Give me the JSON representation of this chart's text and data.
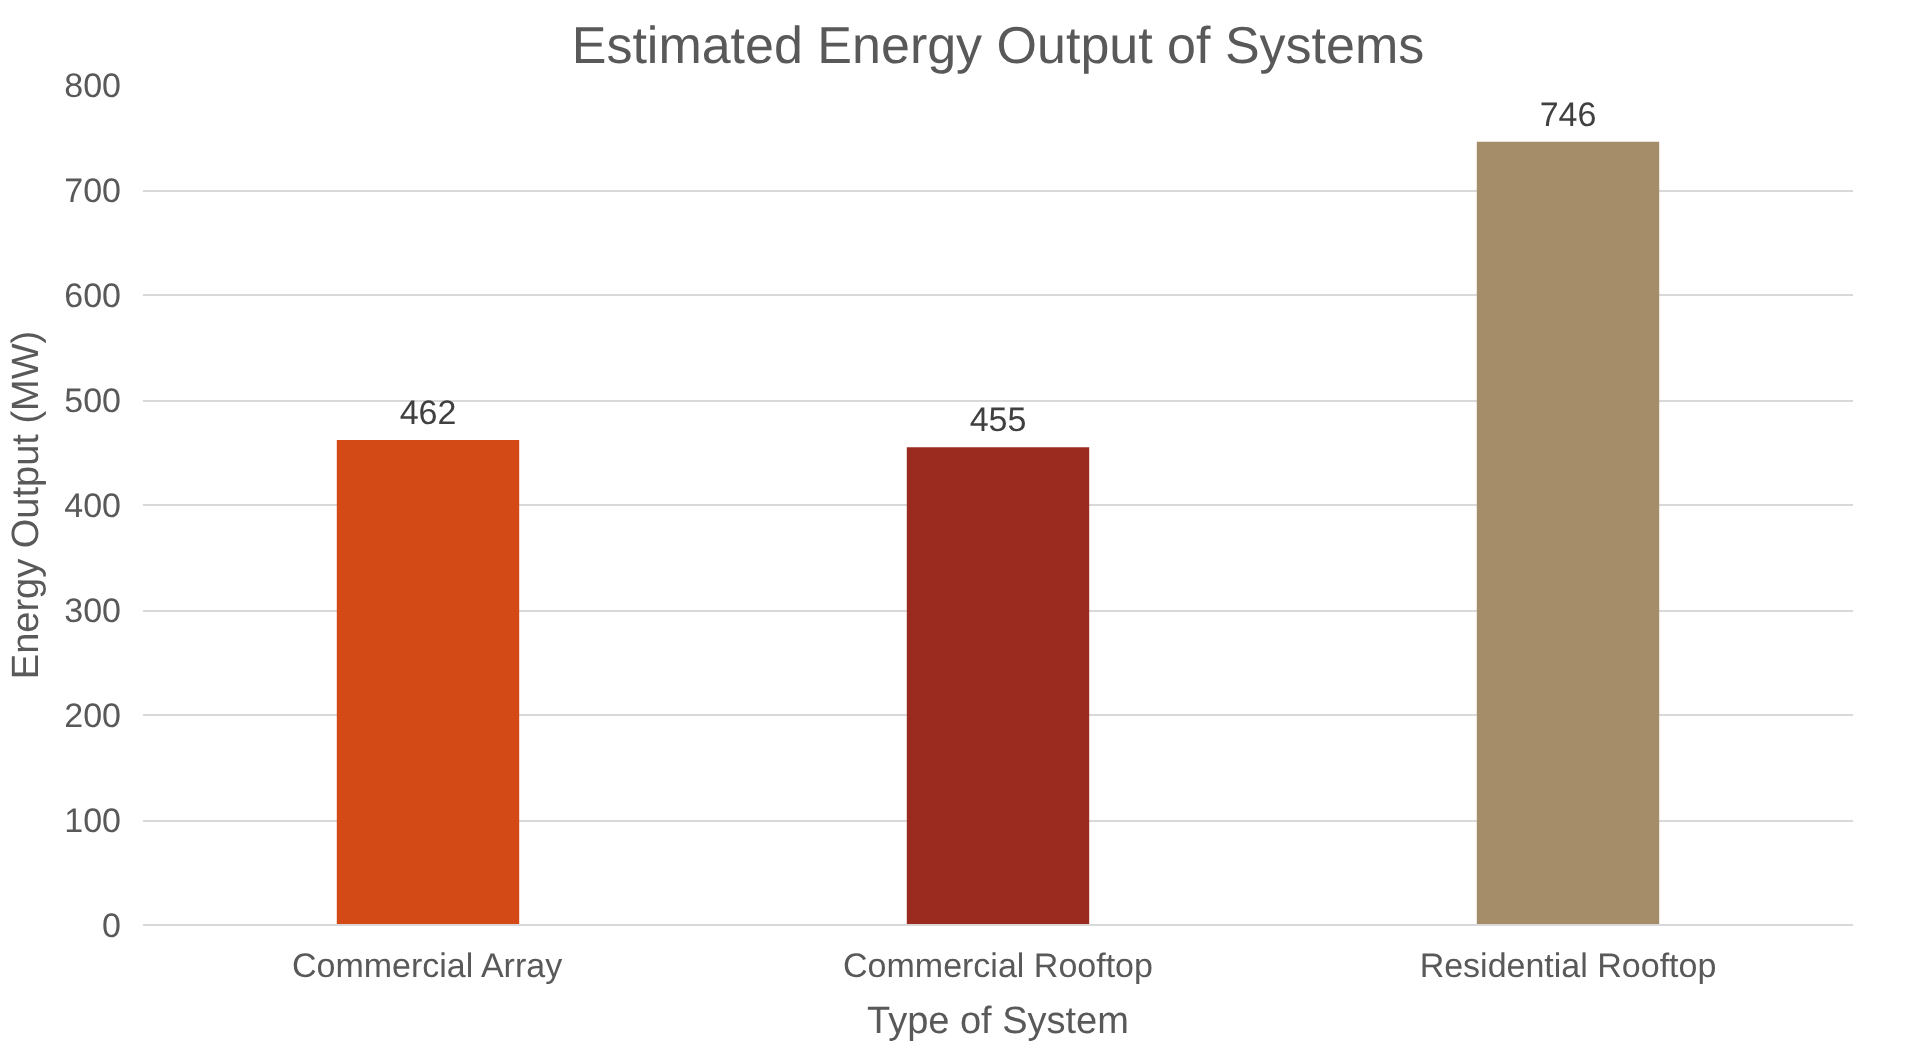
{
  "chart_data": {
    "type": "bar",
    "title": "Estimated Energy Output of Systems",
    "xlabel": "Type of System",
    "ylabel": "Energy Output (MW)",
    "categories": [
      "Commercial Array",
      "Commercial Rooftop",
      "Residential Rooftop"
    ],
    "values": [
      462,
      455,
      746
    ],
    "colors": [
      "#d34a17",
      "#9b2b1f",
      "#a58d6a"
    ],
    "ylim": [
      0,
      800
    ],
    "yticks": [
      0,
      100,
      200,
      300,
      400,
      500,
      600,
      700,
      800
    ],
    "grid": "y",
    "data_labels": true
  }
}
